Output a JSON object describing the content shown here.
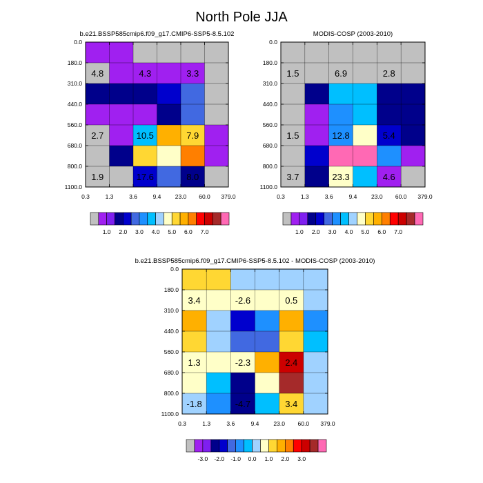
{
  "page_title": "North Pole JJA",
  "chart_data": [
    {
      "type": "heatmap",
      "title": "b.e21.BSSP585cmip6.f09_g17.CMIP6-SSP5-8.5.102",
      "x_ticks": [
        "0.3",
        "1.3",
        "3.6",
        "9.4",
        "23.0",
        "60.0",
        "379.0"
      ],
      "y_ticks": [
        "0.0",
        "180.0",
        "310.0",
        "440.0",
        "560.0",
        "680.0",
        "800.0",
        "1100.0"
      ],
      "colorbar": {
        "colors": [
          "#c0c0c0",
          "#a020f0",
          "#7f1ff0",
          "#00008b",
          "#0000cd",
          "#4169e1",
          "#1e90ff",
          "#00bfff",
          "#a0d2ff",
          "#ffffc8",
          "#ffd733",
          "#ffb000",
          "#ff7f00",
          "#ff0000",
          "#cc0000",
          "#a52a2a",
          "#ff69b4"
        ],
        "tick_labels": [
          "1.0",
          "2.0",
          "3.0",
          "4.0",
          "5.0",
          "6.0",
          "7.0"
        ]
      },
      "grid": [
        [
          1,
          1,
          0,
          0,
          0,
          0
        ],
        [
          0,
          1,
          1,
          1,
          1,
          0
        ],
        [
          3,
          3,
          3,
          4,
          5,
          0
        ],
        [
          1,
          1,
          1,
          3,
          5,
          0
        ],
        [
          0,
          1,
          7,
          11,
          10,
          1
        ],
        [
          0,
          3,
          10,
          9,
          12,
          1
        ],
        [
          0,
          0,
          4,
          5,
          3,
          0
        ]
      ],
      "labels": [
        {
          "col": 0.5,
          "row": 1.5,
          "text": "4.8"
        },
        {
          "col": 2.5,
          "row": 1.5,
          "text": "4.3"
        },
        {
          "col": 4.5,
          "row": 1.5,
          "text": "3.3"
        },
        {
          "col": 0.5,
          "row": 4.5,
          "text": "2.7"
        },
        {
          "col": 2.5,
          "row": 4.5,
          "text": "10.5"
        },
        {
          "col": 4.5,
          "row": 4.5,
          "text": "7.9"
        },
        {
          "col": 0.5,
          "row": 6.5,
          "text": "1.9"
        },
        {
          "col": 2.5,
          "row": 6.5,
          "text": "17.6"
        },
        {
          "col": 4.5,
          "row": 6.5,
          "text": "8.0"
        }
      ]
    },
    {
      "type": "heatmap",
      "title": "MODIS-COSP (2003-2010)",
      "x_ticks": [
        "0.3",
        "1.3",
        "3.6",
        "9.4",
        "23.0",
        "60.0",
        "379.0"
      ],
      "y_ticks": [
        "0.0",
        "180.0",
        "310.0",
        "440.0",
        "560.0",
        "680.0",
        "800.0",
        "1100.0"
      ],
      "colorbar": {
        "colors": [
          "#c0c0c0",
          "#a020f0",
          "#7f1ff0",
          "#00008b",
          "#0000cd",
          "#4169e1",
          "#1e90ff",
          "#00bfff",
          "#a0d2ff",
          "#ffffc8",
          "#ffd733",
          "#ffb000",
          "#ff7f00",
          "#ff0000",
          "#cc0000",
          "#a52a2a",
          "#ff69b4"
        ],
        "tick_labels": [
          "1.0",
          "2.0",
          "3.0",
          "4.0",
          "5.0",
          "6.0",
          "7.0"
        ]
      },
      "grid": [
        [
          0,
          0,
          0,
          0,
          0,
          0
        ],
        [
          0,
          0,
          0,
          0,
          0,
          0
        ],
        [
          0,
          3,
          7,
          7,
          3,
          3
        ],
        [
          0,
          1,
          6,
          7,
          3,
          3
        ],
        [
          0,
          1,
          6,
          9,
          4,
          3
        ],
        [
          0,
          4,
          16,
          16,
          6,
          1
        ],
        [
          0,
          3,
          9,
          7,
          1,
          0
        ]
      ],
      "labels": [
        {
          "col": 0.5,
          "row": 1.5,
          "text": "1.5"
        },
        {
          "col": 2.5,
          "row": 1.5,
          "text": "6.9"
        },
        {
          "col": 4.5,
          "row": 1.5,
          "text": "2.8"
        },
        {
          "col": 0.5,
          "row": 4.5,
          "text": "1.5"
        },
        {
          "col": 2.5,
          "row": 4.5,
          "text": "12.8"
        },
        {
          "col": 4.5,
          "row": 4.5,
          "text": "5.4"
        },
        {
          "col": 0.5,
          "row": 6.5,
          "text": "3.7"
        },
        {
          "col": 2.5,
          "row": 6.5,
          "text": "23.3"
        },
        {
          "col": 4.5,
          "row": 6.5,
          "text": "4.6"
        }
      ]
    },
    {
      "type": "heatmap",
      "title": "b.e21.BSSP585cmip6.f09_g17.CMIP6-SSP5-8.5.102 - MODIS-COSP (2003-2010)",
      "x_ticks": [
        "0.3",
        "1.3",
        "3.6",
        "9.4",
        "23.0",
        "60.0",
        "379.0"
      ],
      "y_ticks": [
        "0.0",
        "180.0",
        "310.0",
        "440.0",
        "560.0",
        "680.0",
        "800.0",
        "1100.0"
      ],
      "colorbar": {
        "colors": [
          "#c0c0c0",
          "#a020f0",
          "#7f1ff0",
          "#00008b",
          "#0000cd",
          "#4169e1",
          "#1e90ff",
          "#00bfff",
          "#a0d2ff",
          "#ffffc8",
          "#ffd733",
          "#ffb000",
          "#ff7f00",
          "#ff0000",
          "#cc0000",
          "#a52a2a",
          "#ff69b4"
        ],
        "tick_labels": [
          "-3.0",
          "-2.0",
          "-1.0",
          "0.0",
          "1.0",
          "2.0",
          "3.0"
        ]
      },
      "grid": [
        [
          10,
          10,
          8,
          8,
          8,
          8
        ],
        [
          9,
          9,
          9,
          9,
          9,
          8
        ],
        [
          11,
          8,
          4,
          6,
          11,
          6
        ],
        [
          10,
          8,
          5,
          5,
          10,
          7
        ],
        [
          9,
          9,
          9,
          11,
          14,
          8
        ],
        [
          9,
          7,
          3,
          9,
          15,
          8
        ],
        [
          8,
          6,
          3,
          7,
          10,
          8
        ]
      ],
      "labels": [
        {
          "col": 0.5,
          "row": 1.5,
          "text": "3.4"
        },
        {
          "col": 2.5,
          "row": 1.5,
          "text": "-2.6"
        },
        {
          "col": 4.5,
          "row": 1.5,
          "text": "0.5"
        },
        {
          "col": 0.5,
          "row": 4.5,
          "text": "1.3"
        },
        {
          "col": 2.5,
          "row": 4.5,
          "text": "-2.3"
        },
        {
          "col": 4.5,
          "row": 4.5,
          "text": "2.4"
        },
        {
          "col": 0.5,
          "row": 6.5,
          "text": "-1.8"
        },
        {
          "col": 2.5,
          "row": 6.5,
          "text": "-4.7"
        },
        {
          "col": 4.5,
          "row": 6.5,
          "text": "3.4"
        }
      ]
    }
  ]
}
